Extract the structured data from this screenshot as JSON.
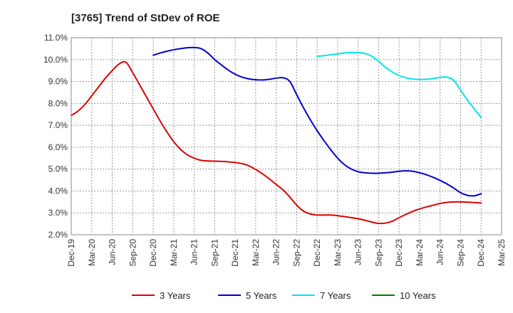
{
  "chart_data": {
    "type": "line",
    "title": "[3765]  Trend of StDev of ROE",
    "xlabel": "",
    "ylabel": "",
    "ylim": [
      2.0,
      11.0
    ],
    "y_ticks": [
      "11.0%",
      "10.0%",
      "9.0%",
      "8.0%",
      "7.0%",
      "6.0%",
      "5.0%",
      "4.0%",
      "3.0%",
      "2.0%"
    ],
    "y_tick_values": [
      11.0,
      10.0,
      9.0,
      8.0,
      7.0,
      6.0,
      5.0,
      4.0,
      3.0,
      2.0
    ],
    "x_ticks": [
      "Dec-19",
      "Mar-20",
      "Jun-20",
      "Sep-20",
      "Dec-20",
      "Mar-21",
      "Jun-21",
      "Sep-21",
      "Dec-21",
      "Mar-22",
      "Jun-22",
      "Sep-22",
      "Dec-22",
      "Mar-23",
      "Jun-23",
      "Sep-23",
      "Dec-23",
      "Mar-24",
      "Jun-24",
      "Sep-24",
      "Dec-24",
      "Mar-25"
    ],
    "grid": true,
    "legend_position": "bottom",
    "series": [
      {
        "name": "3 Years",
        "color": "#dd0000",
        "points": [
          [
            "Dec-19",
            7.45
          ],
          [
            "Jan-20",
            7.65
          ],
          [
            "Feb-20",
            7.95
          ],
          [
            "Mar-20",
            8.35
          ],
          [
            "Apr-20",
            8.75
          ],
          [
            "May-20",
            9.15
          ],
          [
            "Jun-20",
            9.5
          ],
          [
            "Jul-20",
            9.8
          ],
          [
            "Aug-20",
            9.88
          ],
          [
            "Sep-20",
            9.4
          ],
          [
            "Oct-20",
            8.85
          ],
          [
            "Nov-20",
            8.3
          ],
          [
            "Dec-20",
            7.75
          ],
          [
            "Jan-21",
            7.2
          ],
          [
            "Feb-21",
            6.7
          ],
          [
            "Mar-21",
            6.25
          ],
          [
            "Apr-21",
            5.9
          ],
          [
            "May-21",
            5.65
          ],
          [
            "Jun-21",
            5.5
          ],
          [
            "Jul-21",
            5.4
          ],
          [
            "Aug-21",
            5.37
          ],
          [
            "Sep-21",
            5.36
          ],
          [
            "Oct-21",
            5.35
          ],
          [
            "Nov-21",
            5.33
          ],
          [
            "Dec-21",
            5.3
          ],
          [
            "Jan-22",
            5.25
          ],
          [
            "Feb-22",
            5.15
          ],
          [
            "Mar-22",
            4.98
          ],
          [
            "Apr-22",
            4.78
          ],
          [
            "May-22",
            4.55
          ],
          [
            "Jun-22",
            4.3
          ],
          [
            "Jul-22",
            4.05
          ],
          [
            "Aug-22",
            3.72
          ],
          [
            "Sep-22",
            3.35
          ],
          [
            "Oct-22",
            3.08
          ],
          [
            "Nov-22",
            2.95
          ],
          [
            "Dec-22",
            2.9
          ],
          [
            "Jan-23",
            2.9
          ],
          [
            "Feb-23",
            2.9
          ],
          [
            "Mar-23",
            2.87
          ],
          [
            "Apr-23",
            2.83
          ],
          [
            "May-23",
            2.78
          ],
          [
            "Jun-23",
            2.73
          ],
          [
            "Jul-23",
            2.66
          ],
          [
            "Aug-23",
            2.58
          ],
          [
            "Sep-23",
            2.52
          ],
          [
            "Oct-23",
            2.53
          ],
          [
            "Nov-23",
            2.62
          ],
          [
            "Dec-23",
            2.78
          ],
          [
            "Jan-24",
            2.93
          ],
          [
            "Feb-24",
            3.07
          ],
          [
            "Mar-24",
            3.18
          ],
          [
            "Apr-24",
            3.27
          ],
          [
            "May-24",
            3.35
          ],
          [
            "Jun-24",
            3.43
          ],
          [
            "Jul-24",
            3.48
          ],
          [
            "Aug-24",
            3.5
          ],
          [
            "Sep-24",
            3.5
          ],
          [
            "Oct-24",
            3.49
          ],
          [
            "Nov-24",
            3.47
          ],
          [
            "Dec-24",
            3.45
          ]
        ]
      },
      {
        "name": "5 Years",
        "color": "#0000cc",
        "points": [
          [
            "Dec-20",
            10.2
          ],
          [
            "Jan-21",
            10.3
          ],
          [
            "Feb-21",
            10.38
          ],
          [
            "Mar-21",
            10.45
          ],
          [
            "Apr-21",
            10.5
          ],
          [
            "May-21",
            10.54
          ],
          [
            "Jun-21",
            10.55
          ],
          [
            "Jul-21",
            10.5
          ],
          [
            "Aug-21",
            10.3
          ],
          [
            "Sep-21",
            10.0
          ],
          [
            "Oct-21",
            9.75
          ],
          [
            "Nov-21",
            9.52
          ],
          [
            "Dec-21",
            9.33
          ],
          [
            "Jan-22",
            9.2
          ],
          [
            "Feb-22",
            9.12
          ],
          [
            "Mar-22",
            9.08
          ],
          [
            "Apr-22",
            9.07
          ],
          [
            "May-22",
            9.1
          ],
          [
            "Jun-22",
            9.15
          ],
          [
            "Jul-22",
            9.17
          ],
          [
            "Aug-22",
            9.0
          ],
          [
            "Sep-22",
            8.4
          ],
          [
            "Oct-22",
            7.8
          ],
          [
            "Nov-22",
            7.25
          ],
          [
            "Dec-22",
            6.75
          ],
          [
            "Jan-23",
            6.3
          ],
          [
            "Feb-23",
            5.88
          ],
          [
            "Mar-23",
            5.5
          ],
          [
            "Apr-23",
            5.2
          ],
          [
            "May-23",
            5.0
          ],
          [
            "Jun-23",
            4.88
          ],
          [
            "Jul-23",
            4.83
          ],
          [
            "Aug-23",
            4.81
          ],
          [
            "Sep-23",
            4.81
          ],
          [
            "Oct-23",
            4.83
          ],
          [
            "Nov-23",
            4.86
          ],
          [
            "Dec-23",
            4.9
          ],
          [
            "Jan-24",
            4.92
          ],
          [
            "Feb-24",
            4.9
          ],
          [
            "Mar-24",
            4.83
          ],
          [
            "Apr-24",
            4.74
          ],
          [
            "May-24",
            4.62
          ],
          [
            "Jun-24",
            4.48
          ],
          [
            "Jul-24",
            4.32
          ],
          [
            "Aug-24",
            4.13
          ],
          [
            "Sep-24",
            3.92
          ],
          [
            "Oct-24",
            3.8
          ],
          [
            "Nov-24",
            3.78
          ],
          [
            "Dec-24",
            3.87
          ]
        ]
      },
      {
        "name": "7 Years",
        "color": "#00e5ee",
        "points": [
          [
            "Dec-22",
            10.15
          ],
          [
            "Jan-23",
            10.18
          ],
          [
            "Feb-23",
            10.22
          ],
          [
            "Mar-23",
            10.26
          ],
          [
            "Apr-23",
            10.3
          ],
          [
            "May-23",
            10.32
          ],
          [
            "Jun-23",
            10.32
          ],
          [
            "Jul-23",
            10.28
          ],
          [
            "Aug-23",
            10.15
          ],
          [
            "Sep-23",
            9.92
          ],
          [
            "Oct-23",
            9.65
          ],
          [
            "Nov-23",
            9.43
          ],
          [
            "Dec-23",
            9.27
          ],
          [
            "Jan-24",
            9.17
          ],
          [
            "Feb-24",
            9.11
          ],
          [
            "Mar-24",
            9.09
          ],
          [
            "Apr-24",
            9.1
          ],
          [
            "May-24",
            9.14
          ],
          [
            "Jun-24",
            9.19
          ],
          [
            "Jul-24",
            9.2
          ],
          [
            "Aug-24",
            9.05
          ],
          [
            "Sep-24",
            8.6
          ],
          [
            "Oct-24",
            8.15
          ],
          [
            "Nov-24",
            7.75
          ],
          [
            "Dec-24",
            7.35
          ]
        ]
      },
      {
        "name": "10 Years",
        "color": "#008000",
        "points": []
      }
    ]
  }
}
